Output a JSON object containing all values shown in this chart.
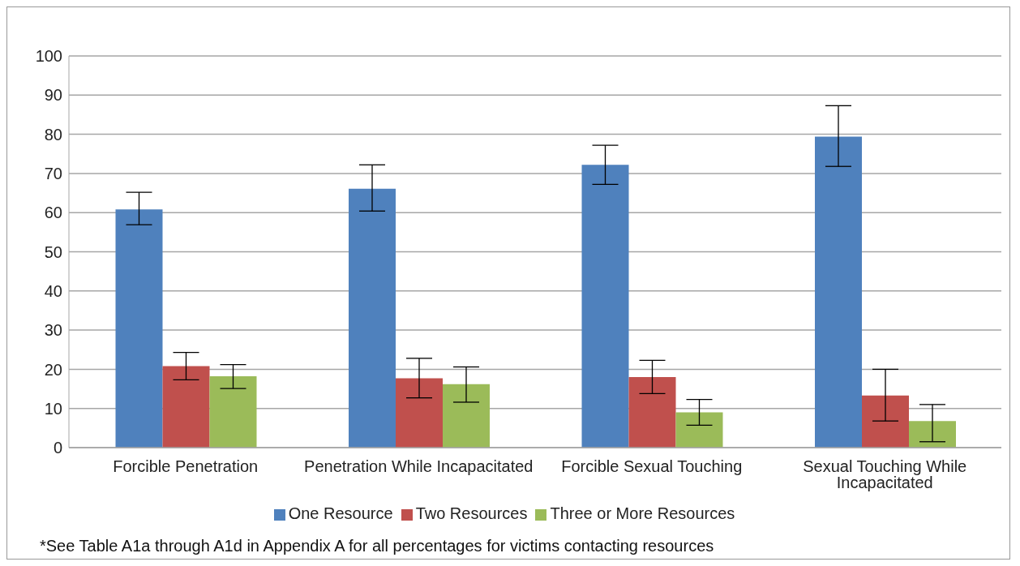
{
  "chart_data": {
    "type": "bar",
    "categories": [
      "Forcible Penetration",
      "Penetration While Incapacitated",
      "Forcible Sexual Touching",
      "Sexual Touching While Incapacitated"
    ],
    "series": [
      {
        "name": "One Resource",
        "color": "#4f81bd",
        "values": [
          60.8,
          66.1,
          72.2,
          79.4
        ],
        "errors": [
          [
            56.9,
            65.2
          ],
          [
            60.4,
            72.2
          ],
          [
            67.2,
            77.2
          ],
          [
            71.8,
            87.3
          ]
        ]
      },
      {
        "name": "Two Resources",
        "color": "#c0504d",
        "values": [
          20.8,
          17.7,
          18,
          13.3
        ],
        "errors": [
          [
            17.3,
            24.3
          ],
          [
            12.7,
            22.8
          ],
          [
            13.8,
            22.3
          ],
          [
            6.8,
            20
          ]
        ]
      },
      {
        "name": "Three or More Resources",
        "color": "#9bbb59",
        "values": [
          18.2,
          16.2,
          9,
          6.8
        ],
        "errors": [
          [
            15.1,
            21.2
          ],
          [
            11.6,
            20.6
          ],
          [
            5.7,
            12.3
          ],
          [
            1.5,
            11
          ]
        ]
      }
    ],
    "ylim": [
      0,
      100
    ],
    "yticks": [
      0,
      10,
      20,
      30,
      40,
      50,
      60,
      70,
      80,
      90,
      100
    ],
    "grid": "y",
    "legend": "bottom",
    "annotations": [
      "*See Table A1a through A1d in Appendix A for all percentages for victims contacting resources"
    ]
  }
}
